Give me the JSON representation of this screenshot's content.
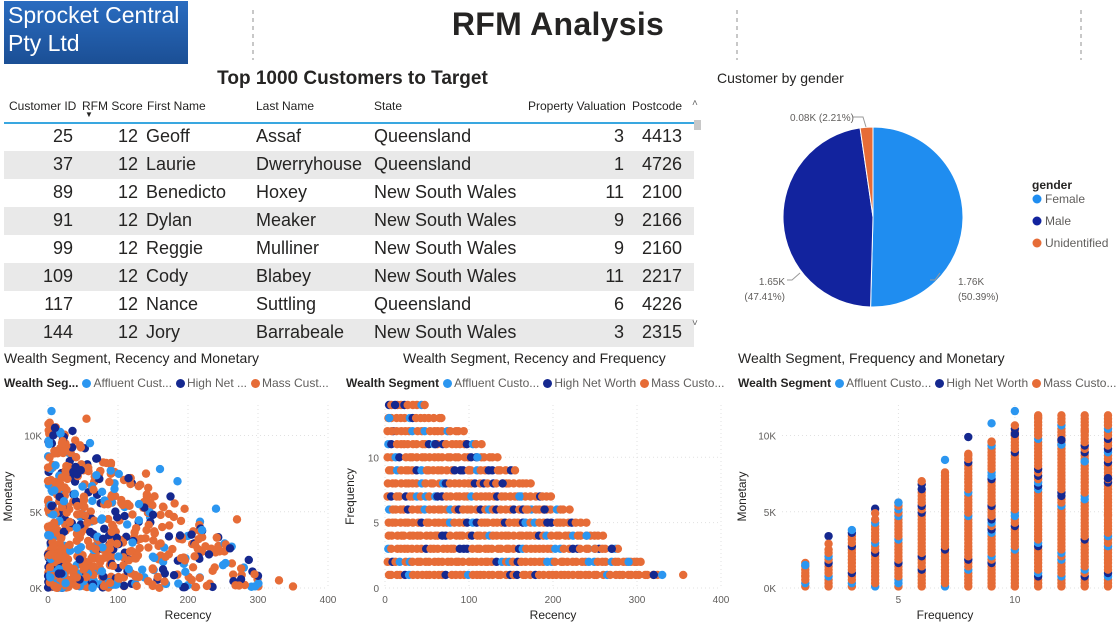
{
  "logo": {
    "line1": "Sprocket Central",
    "line2": "Pty Ltd"
  },
  "title": "RFM Analysis",
  "table": {
    "title": "Top 1000 Customers to Target",
    "columns": [
      "Customer ID",
      "RFM Score",
      "First Name",
      "Last Name",
      "State",
      "Property Valuation",
      "Postcode"
    ],
    "sort_indicator": "▼",
    "rows": [
      [
        "25",
        "12",
        "Geoff",
        "Assaf",
        "Queensland",
        "3",
        "4413"
      ],
      [
        "37",
        "12",
        "Laurie",
        "Dwerryhouse",
        "Queensland",
        "1",
        "4726"
      ],
      [
        "89",
        "12",
        "Benedicto",
        "Hoxey",
        "New South Wales",
        "11",
        "2100"
      ],
      [
        "91",
        "12",
        "Dylan",
        "Meaker",
        "New South Wales",
        "9",
        "2166"
      ],
      [
        "99",
        "12",
        "Reggie",
        "Mulliner",
        "New South Wales",
        "9",
        "2160"
      ],
      [
        "109",
        "12",
        "Cody",
        "Blabey",
        "New South Wales",
        "11",
        "2217"
      ],
      [
        "117",
        "12",
        "Nance",
        "Suttling",
        "Queensland",
        "6",
        "4226"
      ],
      [
        "144",
        "12",
        "Jory",
        "Barrabeale",
        "New South Wales",
        "3",
        "2315"
      ]
    ]
  },
  "gender_chart": {
    "title": "Customer by gender",
    "legend_title": "gender",
    "labels": {
      "unidentified": "0.08K (2.21%)",
      "male_1": "1.65K",
      "male_2": "(47.41%)",
      "female_1": "1.76K",
      "female_2": "(50.39%)"
    }
  },
  "scatter_common": {
    "legend_title_full": "Wealth Segment",
    "legend_title_short": "Wealth Seg...",
    "series_short_a": [
      "Affluent Cust...",
      "High Net ...",
      "Mass Cust..."
    ],
    "series_short_b": [
      "Affluent Custo...",
      "High Net Worth",
      "Mass Custo..."
    ]
  },
  "colors": {
    "affluent": "#2b96f0",
    "high_net": "#15288f",
    "mass": "#e66c37",
    "female": "#1f8df0",
    "male": "#12239e",
    "unidentified": "#e66c37",
    "logo_bg": "#1f5aa6",
    "accent": "#39a7e0"
  },
  "chart_data": [
    {
      "type": "pie",
      "title": "Customer by gender",
      "legend_title": "gender",
      "categories": [
        "Female",
        "Male",
        "Unidentified"
      ],
      "values": [
        1760,
        1650,
        80
      ],
      "percentages": [
        50.39,
        47.41,
        2.21
      ]
    },
    {
      "type": "scatter",
      "title": "Wealth Segment, Recency and Monetary",
      "xlabel": "Recency",
      "ylabel": "Monetary",
      "xlim": [
        0,
        400
      ],
      "ylim": [
        0,
        12000
      ],
      "xticks": [
        "0",
        "100",
        "200",
        "300",
        "400"
      ],
      "yticks": [
        "0K",
        "5K",
        "10K"
      ],
      "series": [
        {
          "name": "Affluent Customer",
          "values": [
            [
              5,
              11600
            ],
            [
              130,
              5500
            ],
            [
              160,
              7800
            ],
            [
              185,
              7000
            ],
            [
              220,
              3800
            ],
            [
              240,
              5200
            ],
            [
              95,
              6500
            ],
            [
              60,
              9500
            ],
            [
              250,
              1500
            ]
          ]
        },
        {
          "name": "High Net Worth",
          "values": [
            [
              10,
              10500
            ],
            [
              35,
              10300
            ],
            [
              70,
              8500
            ],
            [
              115,
              7200
            ],
            [
              150,
              4800
            ],
            [
              175,
              6000
            ],
            [
              205,
              3500
            ],
            [
              230,
              2200
            ],
            [
              260,
              2600
            ],
            [
              300,
              800
            ]
          ]
        },
        {
          "name": "Mass Customer",
          "values": [
            [
              20,
              9500
            ],
            [
              55,
              11100
            ],
            [
              90,
              8200
            ],
            [
              140,
              7500
            ],
            [
              165,
              5300
            ],
            [
              190,
              4400
            ],
            [
              215,
              3200
            ],
            [
              245,
              2400
            ],
            [
              270,
              4500
            ],
            [
              295,
              900
            ],
            [
              330,
              500
            ],
            [
              350,
              100
            ]
          ]
        }
      ]
    },
    {
      "type": "scatter",
      "title": "Wealth Segment, Recency and Frequency",
      "xlabel": "Recency",
      "ylabel": "Frequency",
      "xlim": [
        0,
        400
      ],
      "ylim": [
        0,
        14
      ],
      "xticks": [
        "0",
        "100",
        "200",
        "300",
        "400"
      ],
      "yticks": [
        "0",
        "5",
        "10"
      ],
      "series": [
        {
          "name": "Affluent Customer",
          "values": [
            [
              5,
              13
            ],
            [
              110,
              10
            ],
            [
              160,
              7
            ],
            [
              240,
              4
            ],
            [
              290,
              2
            ],
            [
              330,
              1
            ]
          ]
        },
        {
          "name": "High Net Worth",
          "values": [
            [
              12,
              14
            ],
            [
              60,
              11
            ],
            [
              140,
              8
            ],
            [
              190,
              6
            ],
            [
              270,
              3
            ],
            [
              320,
              1
            ]
          ]
        },
        {
          "name": "Mass Customer",
          "values": [
            [
              8,
              12
            ],
            [
              100,
              9
            ],
            [
              170,
              6
            ],
            [
              250,
              3
            ],
            [
              300,
              2
            ],
            [
              355,
              1
            ]
          ]
        }
      ]
    },
    {
      "type": "scatter",
      "title": "Wealth Segment, Frequency and Monetary",
      "xlabel": "Frequency",
      "ylabel": "Monetary",
      "xlim": [
        0,
        14
      ],
      "ylim": [
        0,
        12000
      ],
      "xticks": [
        "5",
        "10"
      ],
      "yticks": [
        "0K",
        "5K",
        "10K"
      ],
      "series": [
        {
          "name": "Affluent Customer",
          "values": [
            [
              1,
              1500
            ],
            [
              3,
              3800
            ],
            [
              5,
              5600
            ],
            [
              7,
              8400
            ],
            [
              9,
              10800
            ],
            [
              10,
              11600
            ],
            [
              12,
              9400
            ],
            [
              13,
              8300
            ]
          ]
        },
        {
          "name": "High Net Worth",
          "values": [
            [
              2,
              3400
            ],
            [
              4,
              5200
            ],
            [
              6,
              6800
            ],
            [
              8,
              9900
            ],
            [
              10,
              10100
            ],
            [
              12,
              9700
            ],
            [
              14,
              7200
            ]
          ]
        },
        {
          "name": "Mass Customer",
          "values": [
            [
              1,
              800
            ],
            [
              2,
              2900
            ],
            [
              4,
              4900
            ],
            [
              6,
              7000
            ],
            [
              8,
              8800
            ],
            [
              9,
              9600
            ],
            [
              11,
              11200
            ],
            [
              13,
              10300
            ],
            [
              14,
              4800
            ]
          ]
        }
      ]
    }
  ]
}
